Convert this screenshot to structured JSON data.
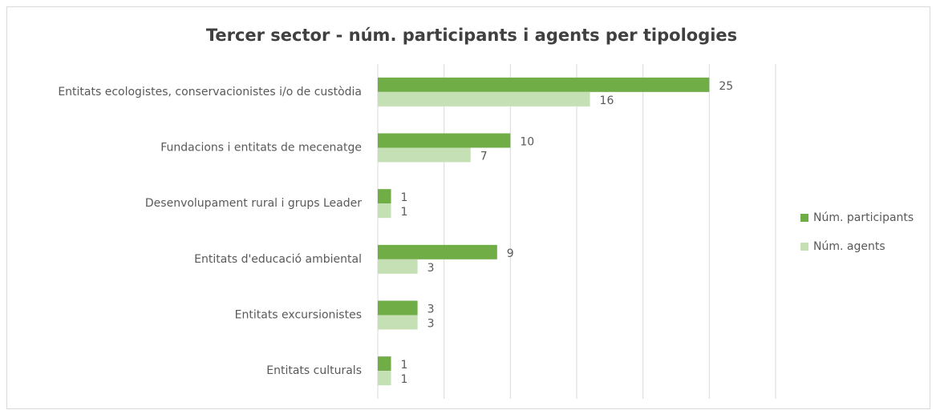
{
  "chart_data": {
    "type": "bar",
    "orientation": "horizontal",
    "title": "Tercer sector - núm. participants i agents per tipologies",
    "categories": [
      "Entitats ecologistes, conservacionistes i/o de custòdia",
      "Fundacions i entitats de mecenatge",
      "Desenvolupament rural i grups Leader",
      "Entitats d'educació ambiental",
      "Entitats excursionistes",
      "Entitats culturals"
    ],
    "series": [
      {
        "name": "Núm. participants",
        "color": "#70ad47",
        "values": [
          25,
          10,
          1,
          9,
          3,
          1
        ]
      },
      {
        "name": "Núm. agents",
        "color": "#c5e0b4",
        "values": [
          16,
          7,
          1,
          3,
          3,
          1
        ]
      }
    ],
    "xlim": [
      0,
      30
    ],
    "xticks": [
      0,
      5,
      10,
      15,
      20,
      25,
      30
    ],
    "grid": true,
    "legend": "right"
  }
}
